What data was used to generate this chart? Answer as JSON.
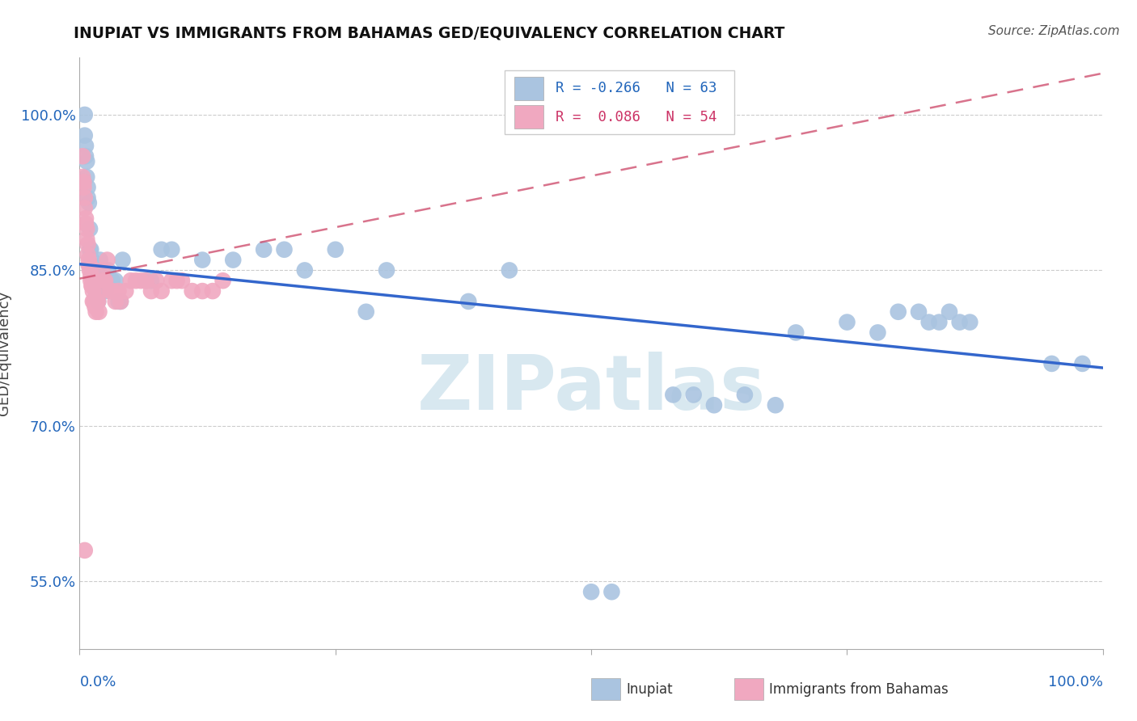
{
  "title": "INUPIAT VS IMMIGRANTS FROM BAHAMAS GED/EQUIVALENCY CORRELATION CHART",
  "source": "Source: ZipAtlas.com",
  "ylabel": "GED/Equivalency",
  "ytick_vals": [
    0.55,
    0.7,
    0.85,
    1.0
  ],
  "ytick_labels": [
    "55.0%",
    "70.0%",
    "85.0%",
    "100.0%"
  ],
  "xlim": [
    0.0,
    1.0
  ],
  "ylim": [
    0.485,
    1.055
  ],
  "legend_label1": "Inupiat",
  "legend_label2": "Immigrants from Bahamas",
  "blue_scatter_color": "#aac4e0",
  "pink_scatter_color": "#f0a8c0",
  "blue_line_color": "#3366cc",
  "pink_line_color": "#cc4466",
  "background_color": "#ffffff",
  "watermark_text": "ZIPatlas",
  "watermark_color": "#d8e8f0",
  "r_blue": "-0.266",
  "n_blue": "63",
  "r_pink": "0.086",
  "n_pink": "54",
  "blue_line_x0": 0.0,
  "blue_line_y0": 0.856,
  "blue_line_x1": 1.0,
  "blue_line_y1": 0.756,
  "pink_line_x0": 0.0,
  "pink_line_y0": 0.842,
  "pink_line_x1": 1.0,
  "pink_line_y1": 1.04,
  "inupiat_x": [
    0.005,
    0.005,
    0.006,
    0.006,
    0.007,
    0.007,
    0.008,
    0.008,
    0.009,
    0.01,
    0.01,
    0.011,
    0.012,
    0.012,
    0.013,
    0.014,
    0.015,
    0.016,
    0.017,
    0.018,
    0.02,
    0.022,
    0.025,
    0.028,
    0.03,
    0.032,
    0.035,
    0.038,
    0.04,
    0.042,
    0.065,
    0.07,
    0.08,
    0.09,
    0.12,
    0.15,
    0.18,
    0.2,
    0.22,
    0.25,
    0.28,
    0.3,
    0.38,
    0.42,
    0.5,
    0.52,
    0.58,
    0.6,
    0.62,
    0.65,
    0.68,
    0.7,
    0.75,
    0.78,
    0.8,
    0.82,
    0.83,
    0.84,
    0.85,
    0.86,
    0.87,
    0.95,
    0.98
  ],
  "inupiat_y": [
    1.0,
    0.98,
    0.97,
    0.96,
    0.955,
    0.94,
    0.93,
    0.92,
    0.915,
    0.89,
    0.87,
    0.87,
    0.86,
    0.85,
    0.845,
    0.84,
    0.84,
    0.83,
    0.825,
    0.82,
    0.86,
    0.845,
    0.83,
    0.85,
    0.84,
    0.84,
    0.84,
    0.82,
    0.82,
    0.86,
    0.84,
    0.84,
    0.87,
    0.87,
    0.86,
    0.86,
    0.87,
    0.87,
    0.85,
    0.87,
    0.81,
    0.85,
    0.82,
    0.85,
    0.54,
    0.54,
    0.73,
    0.73,
    0.72,
    0.73,
    0.72,
    0.79,
    0.8,
    0.79,
    0.81,
    0.81,
    0.8,
    0.8,
    0.81,
    0.8,
    0.8,
    0.76,
    0.76
  ],
  "bahamas_x": [
    0.003,
    0.003,
    0.004,
    0.004,
    0.005,
    0.005,
    0.006,
    0.006,
    0.007,
    0.007,
    0.008,
    0.008,
    0.009,
    0.009,
    0.01,
    0.01,
    0.011,
    0.011,
    0.012,
    0.012,
    0.013,
    0.013,
    0.014,
    0.015,
    0.016,
    0.017,
    0.018,
    0.019,
    0.02,
    0.022,
    0.024,
    0.025,
    0.027,
    0.03,
    0.032,
    0.035,
    0.038,
    0.04,
    0.045,
    0.05,
    0.055,
    0.06,
    0.065,
    0.07,
    0.075,
    0.08,
    0.09,
    0.095,
    0.1,
    0.11,
    0.12,
    0.13,
    0.14,
    0.005
  ],
  "bahamas_y": [
    0.96,
    0.94,
    0.935,
    0.93,
    0.92,
    0.91,
    0.9,
    0.895,
    0.89,
    0.88,
    0.875,
    0.865,
    0.86,
    0.855,
    0.855,
    0.85,
    0.845,
    0.84,
    0.835,
    0.835,
    0.83,
    0.82,
    0.82,
    0.815,
    0.81,
    0.82,
    0.82,
    0.81,
    0.83,
    0.85,
    0.84,
    0.84,
    0.86,
    0.83,
    0.83,
    0.82,
    0.83,
    0.82,
    0.83,
    0.84,
    0.84,
    0.84,
    0.84,
    0.83,
    0.84,
    0.83,
    0.84,
    0.84,
    0.84,
    0.83,
    0.83,
    0.83,
    0.84,
    0.58
  ]
}
